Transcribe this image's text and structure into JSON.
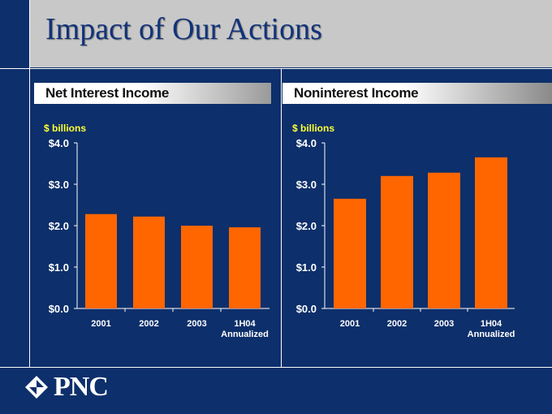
{
  "slide": {
    "title": "Impact of Our Actions",
    "logo_text": "PNC"
  },
  "colors": {
    "background": "#0d2f6b",
    "bar": "#ff6600",
    "unit_label": "#ffff33",
    "title": "#12337a"
  },
  "chart_data": [
    {
      "type": "bar",
      "title": "Net Interest Income",
      "unit_label": "$ billions",
      "categories": [
        "2001",
        "2002",
        "2003",
        "1H04"
      ],
      "category_sublabels": [
        "",
        "",
        "",
        "Annualized"
      ],
      "values": [
        2.28,
        2.22,
        2.0,
        1.96
      ],
      "ylim": [
        0,
        4
      ],
      "yticks": [
        "$0.0",
        "$1.0",
        "$2.0",
        "$3.0",
        "$4.0"
      ],
      "xlabel": "",
      "ylabel": ""
    },
    {
      "type": "bar",
      "title": "Noninterest Income",
      "unit_label": "$ billions",
      "categories": [
        "2001",
        "2002",
        "2003",
        "1H04"
      ],
      "category_sublabels": [
        "",
        "",
        "",
        "Annualized"
      ],
      "values": [
        2.65,
        3.2,
        3.28,
        3.65
      ],
      "ylim": [
        0,
        4
      ],
      "yticks": [
        "$0.0",
        "$1.0",
        "$2.0",
        "$3.0",
        "$4.0"
      ],
      "xlabel": "",
      "ylabel": ""
    }
  ]
}
